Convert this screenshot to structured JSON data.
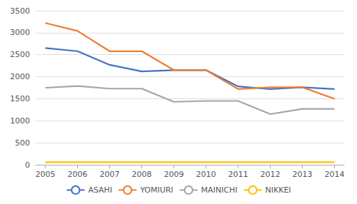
{
  "chart_data": {
    "type": "line",
    "x": [
      2005,
      2006,
      2007,
      2008,
      2009,
      2010,
      2011,
      2012,
      2013,
      2014
    ],
    "series": [
      {
        "name": "ASAHI",
        "color": "#4472C4",
        "values": [
          2650,
          2580,
          2270,
          2120,
          2150,
          2150,
          1780,
          1720,
          1760,
          1720
        ]
      },
      {
        "name": "YOMIURI",
        "color": "#ED7D31",
        "values": [
          3220,
          3040,
          2580,
          2580,
          2150,
          2150,
          1720,
          1760,
          1760,
          1500
        ]
      },
      {
        "name": "MAINICHI",
        "color": "#A5A5A5",
        "values": [
          1750,
          1790,
          1730,
          1730,
          1430,
          1450,
          1450,
          1150,
          1270,
          1270
        ]
      },
      {
        "name": "NIKKEI",
        "color": "#FFC000",
        "values": [
          60,
          60,
          60,
          60,
          60,
          60,
          60,
          60,
          60,
          60
        ]
      }
    ],
    "xlim": [
      2004.7,
      2014.3
    ],
    "xticks": [
      2005,
      2006,
      2007,
      2008,
      2009,
      2010,
      2011,
      2012,
      2013,
      2014
    ],
    "ylim": [
      0,
      3500
    ],
    "yticks": [
      0,
      500,
      1000,
      1500,
      2000,
      2500,
      3000,
      3500
    ],
    "grid": true,
    "legend": "bottom"
  }
}
